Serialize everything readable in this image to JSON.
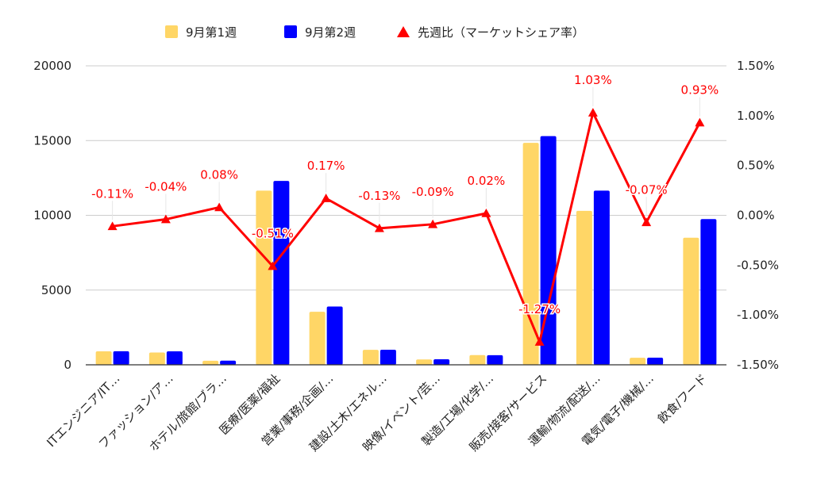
{
  "chart_data": {
    "type": "bar",
    "categories": [
      "ITエンジニア/IT…",
      "ファッション/ア…",
      "ホテル/旅館/ブラ…",
      "医療/医薬/福祉",
      "営業/事務/企画/…",
      "建設/土木/エネル…",
      "映像/イベント/芸…",
      "製造/工場/化学/…",
      "販売/接客/サービス",
      "運輸/物流/配送/…",
      "電気/電子/機械/…",
      "飲食/フード"
    ],
    "series": [
      {
        "name": "9月第1週",
        "type": "bar",
        "axis": "left",
        "color": "#ffd666",
        "values": [
          900,
          820,
          270,
          11650,
          3550,
          1000,
          360,
          650,
          14850,
          10300,
          470,
          8500
        ]
      },
      {
        "name": "9月第2週",
        "type": "bar",
        "axis": "left",
        "color": "#0000ff",
        "values": [
          910,
          900,
          280,
          12300,
          3900,
          1010,
          370,
          640,
          15300,
          11650,
          480,
          9750
        ]
      },
      {
        "name": "先週比（マーケットシェア率）",
        "type": "line",
        "axis": "right",
        "color": "#ff0000",
        "marker": "triangle",
        "values": [
          -0.11,
          -0.04,
          0.08,
          -0.51,
          0.17,
          -0.13,
          -0.09,
          0.02,
          -1.27,
          1.03,
          -0.07,
          0.93
        ],
        "labels": [
          "-0.11%",
          "-0.04%",
          "0.08%",
          "-0.51%",
          "0.17%",
          "-0.13%",
          "-0.09%",
          "0.02%",
          "-1.27%",
          "1.03%",
          "-0.07%",
          "0.93%"
        ]
      }
    ],
    "y_left": {
      "ticks": [
        0,
        5000,
        10000,
        15000,
        20000
      ],
      "tick_labels": [
        "0",
        "5000",
        "10000",
        "15000",
        "20000"
      ],
      "ylim": [
        0,
        20000
      ]
    },
    "y_right": {
      "ticks": [
        -1.5,
        -1.0,
        -0.5,
        0.0,
        0.5,
        1.0,
        1.5
      ],
      "tick_labels": [
        "-1.50%",
        "-1.00%",
        "-0.50%",
        "0.00%",
        "0.50%",
        "1.00%",
        "1.50%"
      ],
      "ylim": [
        -1.5,
        1.5
      ]
    },
    "legend": {
      "position": "top",
      "items": [
        "9月第1週",
        "9月第2週",
        "先週比（マーケットシェア率）"
      ]
    },
    "grid": true
  },
  "colors": {
    "gridline": "#cccccc",
    "axis": "#333333",
    "label_text": "#ff0000"
  }
}
